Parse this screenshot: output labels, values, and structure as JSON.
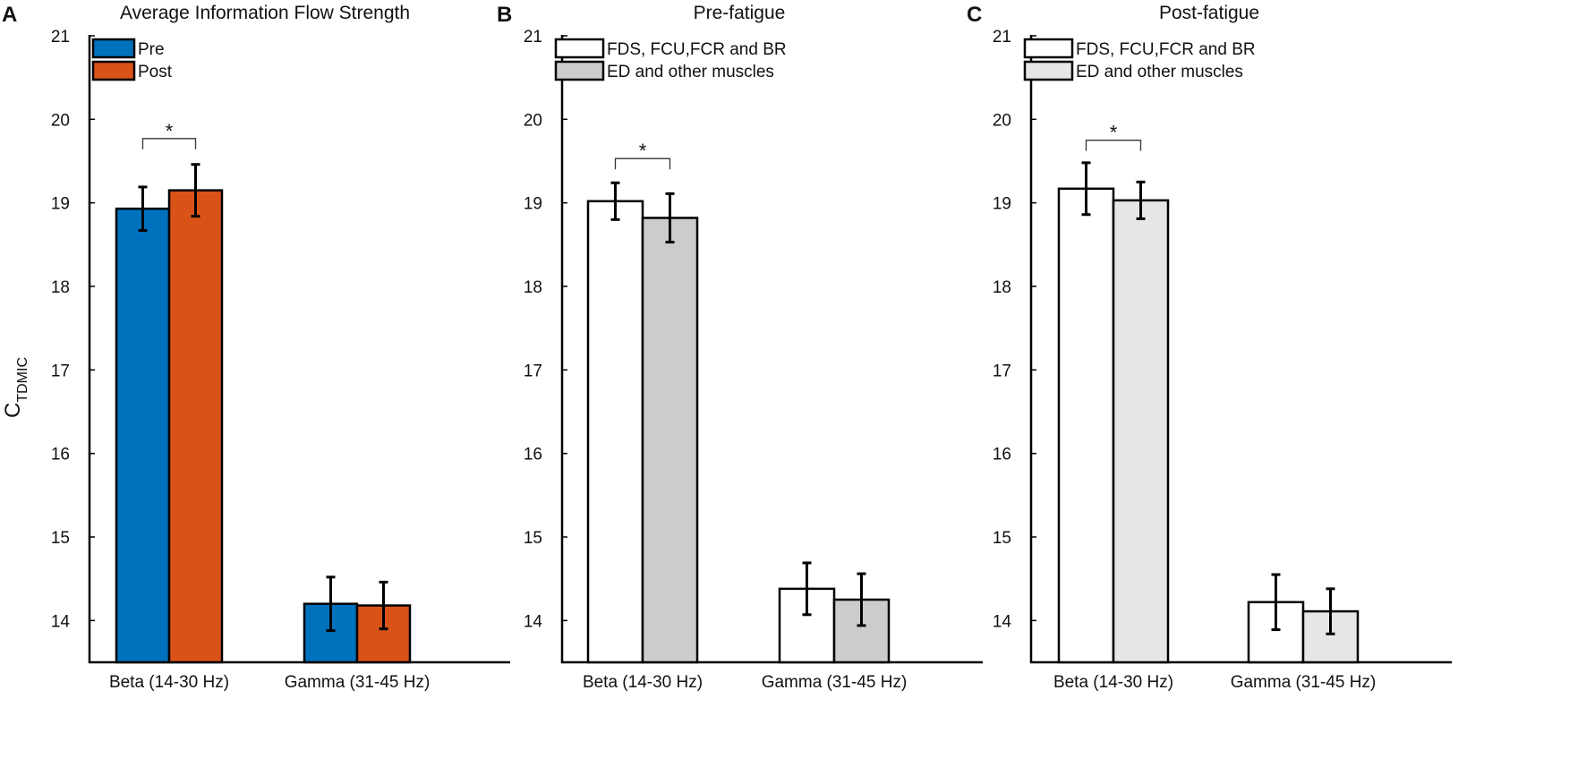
{
  "chart_data": [
    {
      "type": "bar",
      "panel": "A",
      "title": "Average Information Flow Strength",
      "ylabel": "C",
      "ylabel_sub": "TDMIC",
      "xlabel": "",
      "ylim": [
        13.5,
        21
      ],
      "yticks": [
        14,
        15,
        16,
        17,
        18,
        19,
        20,
        21
      ],
      "categories": [
        "Beta (14-30 Hz)",
        "Gamma (31-45 Hz)"
      ],
      "series": [
        {
          "name": "Pre",
          "color": "#0072BD",
          "values": [
            18.93,
            14.2
          ],
          "errors": [
            0.26,
            0.32
          ]
        },
        {
          "name": "Post",
          "color": "#D95319",
          "values": [
            19.15,
            14.18
          ],
          "errors": [
            0.31,
            0.28
          ]
        }
      ],
      "significance": [
        {
          "category_index": 0,
          "label": "*",
          "y": 19.77
        }
      ],
      "legend_position": "top-left"
    },
    {
      "type": "bar",
      "panel": "B",
      "title": "Pre-fatigue",
      "ylabel": "",
      "xlabel": "",
      "ylim": [
        13.5,
        21
      ],
      "yticks": [
        14,
        15,
        16,
        17,
        18,
        19,
        20,
        21
      ],
      "categories": [
        "Beta (14-30 Hz)",
        "Gamma (31-45 Hz)"
      ],
      "series": [
        {
          "name": "FDS, FCU,FCR and BR",
          "color": "#FFFFFF",
          "values": [
            19.02,
            14.38
          ],
          "errors": [
            0.22,
            0.31
          ]
        },
        {
          "name": "ED and other muscles",
          "color": "#CCCCCC",
          "values": [
            18.82,
            14.25
          ],
          "errors": [
            0.29,
            0.31
          ]
        }
      ],
      "significance": [
        {
          "category_index": 0,
          "label": "*",
          "y": 19.53
        }
      ],
      "legend_position": "top-left"
    },
    {
      "type": "bar",
      "panel": "C",
      "title": "Post-fatigue",
      "ylabel": "",
      "xlabel": "",
      "ylim": [
        13.5,
        21
      ],
      "yticks": [
        14,
        15,
        16,
        17,
        18,
        19,
        20,
        21
      ],
      "categories": [
        "Beta (14-30 Hz)",
        "Gamma (31-45 Hz)"
      ],
      "series": [
        {
          "name": "FDS, FCU,FCR and BR",
          "color": "#FFFFFF",
          "values": [
            19.17,
            14.22
          ],
          "errors": [
            0.31,
            0.33
          ]
        },
        {
          "name": "ED and other muscles",
          "color": "#E6E6E6",
          "values": [
            19.03,
            14.11
          ],
          "errors": [
            0.22,
            0.27
          ]
        }
      ],
      "significance": [
        {
          "category_index": 0,
          "label": "*",
          "y": 19.75
        }
      ],
      "legend_position": "top-left"
    }
  ]
}
